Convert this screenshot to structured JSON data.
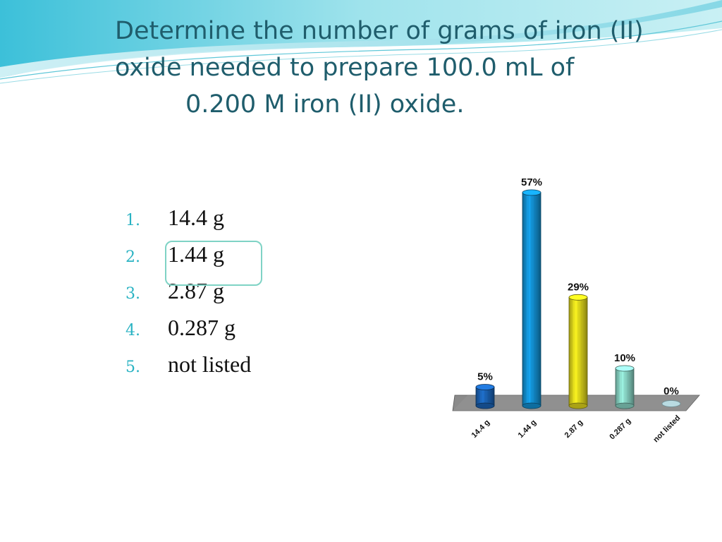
{
  "slide": {
    "title_lines": [
      "Determine the number of grams of iron (II)",
      "oxide needed to prepare 100.0 mL of",
      "0.200 M iron (II) oxide."
    ]
  },
  "answers": [
    {
      "num": "1.",
      "label": "14.4 g"
    },
    {
      "num": "2.",
      "label": "1.44 g"
    },
    {
      "num": "3.",
      "label": "2.87 g"
    },
    {
      "num": "4.",
      "label": "0.287 g"
    },
    {
      "num": "5.",
      "label": "not listed"
    }
  ],
  "colors": {
    "title": "#1f5d6c",
    "numbers": "#2ab3c3",
    "highlight": "#7fd3c5",
    "bar_dark_blue": "#1b63b5",
    "bar_blue": "#1391d4",
    "bar_yellow": "#e2d81c",
    "bar_teal": "#8ad7c7",
    "bar_light": "#b9dbe2",
    "floor": "#8a8a8a"
  },
  "chart_data": {
    "type": "bar",
    "categories": [
      "14.4 g",
      "1.44 g",
      "2.87 g",
      "0.287 g",
      "not listed"
    ],
    "values": [
      5,
      57,
      29,
      10,
      0
    ],
    "value_labels": [
      "5%",
      "57%",
      "29%",
      "10%",
      "0%"
    ],
    "colors": [
      "#1b63b5",
      "#1391d4",
      "#e2d81c",
      "#8ad7c7",
      "#b9dbe2"
    ],
    "ylim": [
      0,
      60
    ],
    "title": "",
    "xlabel": "",
    "ylabel": "",
    "grid": false,
    "legend": "none"
  }
}
